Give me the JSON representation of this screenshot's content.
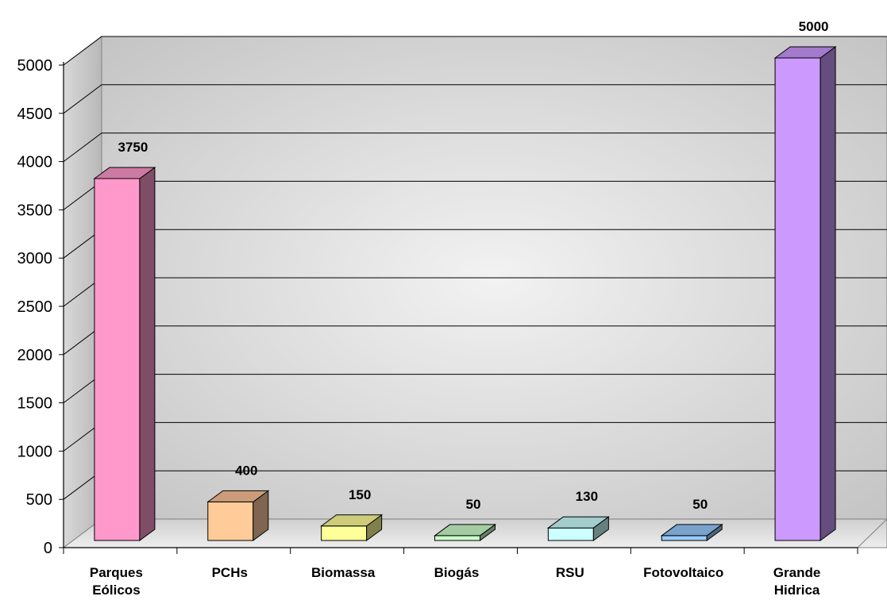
{
  "chart_data": {
    "type": "bar",
    "style": "3d-column",
    "categories": [
      "Parques Eólicos",
      "PCHs",
      "Biomassa",
      "Biogás",
      "RSU",
      "Fotovoltaico",
      "Grande Hidrica"
    ],
    "category_lines": [
      [
        "Parques",
        "Eólicos"
      ],
      [
        "PCHs"
      ],
      [
        "Biomassa"
      ],
      [
        "Biogás"
      ],
      [
        "RSU"
      ],
      [
        "Fotovoltaico"
      ],
      [
        "Grande",
        "Hidrica"
      ]
    ],
    "values": [
      3750,
      400,
      150,
      50,
      130,
      50,
      5000
    ],
    "data_labels": [
      "3750",
      "400",
      "150",
      "50",
      "130",
      "50",
      "5000"
    ],
    "y_ticks": [
      "0",
      "500",
      "1000",
      "1500",
      "2000",
      "2500",
      "3000",
      "3500",
      "4000",
      "4500",
      "5000"
    ],
    "ylim": [
      0,
      5000
    ],
    "title": "",
    "xlabel": "",
    "ylabel": "",
    "grid": true,
    "legend": "none",
    "colors": {
      "front": [
        "#ff99cc",
        "#ffcc99",
        "#ffff99",
        "#ccffcc",
        "#ccffff",
        "#99ccff",
        "#cc99ff"
      ],
      "top": [
        "#cc7aa3",
        "#cc9c7a",
        "#cccc7a",
        "#a3cca3",
        "#a3cccc",
        "#7aa3cc",
        "#a37acc"
      ],
      "side": [
        "#804d66",
        "#806650",
        "#80804d",
        "#668066",
        "#668080",
        "#4d6680",
        "#664d80"
      ]
    }
  }
}
